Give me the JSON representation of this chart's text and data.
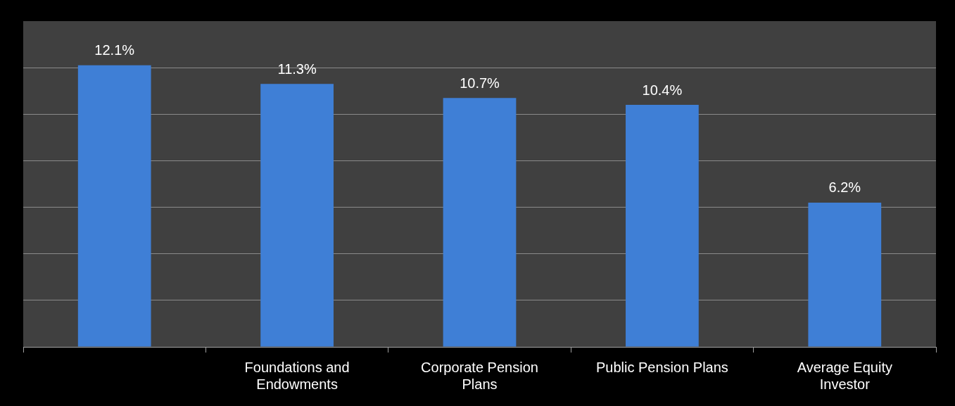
{
  "chart_data": {
    "type": "bar",
    "categories": [
      null,
      "Foundations and Endowments",
      "Corporate Pension Plans",
      "Public Pension Plans",
      "Average Equity Investor"
    ],
    "values": [
      12.1,
      11.3,
      10.7,
      10.4,
      6.2
    ],
    "value_labels": [
      "12.1%",
      "11.3%",
      "10.7%",
      "10.4%",
      "6.2%"
    ],
    "color": "#3f7fd6",
    "yticks": [
      {
        "value": 0,
        "label": null
      },
      {
        "value": 2,
        "label": null
      },
      {
        "value": 4,
        "label": null
      },
      {
        "value": 6,
        "label": null
      },
      {
        "value": 8,
        "label": null
      },
      {
        "value": 10,
        "label": null
      },
      {
        "value": 12,
        "label": null
      }
    ],
    "grid": "y",
    "tick_labels": "x",
    "legend": false
  }
}
